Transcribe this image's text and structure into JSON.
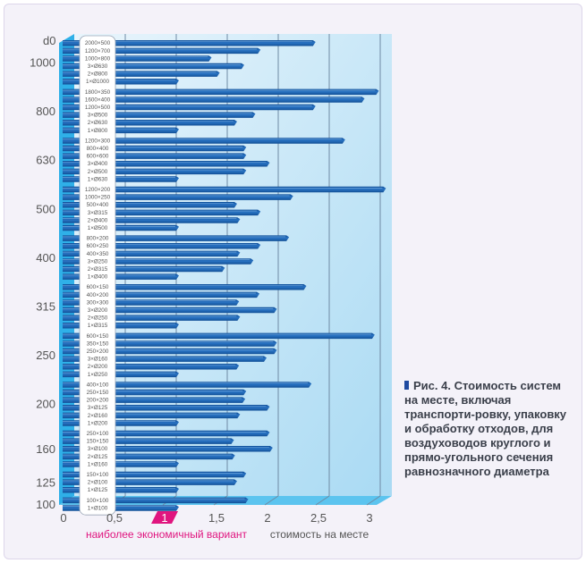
{
  "chart_data": {
    "type": "bar",
    "orientation": "horizontal",
    "y_axis_header": "d0",
    "xlabel": "стоимость на месте",
    "x_ticks": [
      "0",
      "0,5",
      "1",
      "1,5",
      "2",
      "2,5",
      "3"
    ],
    "xlim": [
      0,
      3
    ],
    "highlight_tick": "1",
    "highlight_label": "наиболее экономичный вариант",
    "groups": [
      {
        "d0": "1000",
        "bars": [
          {
            "label": "2000×500",
            "value": 2.34
          },
          {
            "label": "1200×700",
            "value": 1.8
          },
          {
            "label": "1000×800",
            "value": 1.32
          },
          {
            "label": "3×Ø630",
            "value": 1.64
          },
          {
            "label": "2×Ø800",
            "value": 1.4
          },
          {
            "label": "1×Ø1000",
            "value": 1.0
          }
        ]
      },
      {
        "d0": "800",
        "bars": [
          {
            "label": "1800×350",
            "value": 2.96
          },
          {
            "label": "1600×400",
            "value": 2.82
          },
          {
            "label": "1200×500",
            "value": 2.34
          },
          {
            "label": "3×Ø500",
            "value": 1.75
          },
          {
            "label": "2×Ø630",
            "value": 1.57
          },
          {
            "label": "1×Ø800",
            "value": 1.0
          }
        ]
      },
      {
        "d0": "630",
        "bars": [
          {
            "label": "1200×300",
            "value": 2.63
          },
          {
            "label": "800×400",
            "value": 1.66
          },
          {
            "label": "600×600",
            "value": 1.66
          },
          {
            "label": "3×Ø400",
            "value": 1.89
          },
          {
            "label": "2×Ø500",
            "value": 1.66
          },
          {
            "label": "1×Ø630",
            "value": 1.0
          }
        ]
      },
      {
        "d0": "500",
        "bars": [
          {
            "label": "1200×200",
            "value": 3.03
          },
          {
            "label": "1000×250",
            "value": 2.12
          },
          {
            "label": "500×400",
            "value": 1.57
          },
          {
            "label": "3×Ø315",
            "value": 1.8
          },
          {
            "label": "2×Ø400",
            "value": 1.6
          },
          {
            "label": "1×Ø500",
            "value": 1.0
          }
        ]
      },
      {
        "d0": "400",
        "bars": [
          {
            "label": "800×200",
            "value": 2.08
          },
          {
            "label": "600×250",
            "value": 1.8
          },
          {
            "label": "400×350",
            "value": 1.6
          },
          {
            "label": "3×Ø250",
            "value": 1.73
          },
          {
            "label": "2×Ø315",
            "value": 1.45
          },
          {
            "label": "1×Ø400",
            "value": 1.0
          }
        ]
      },
      {
        "d0": "315",
        "bars": [
          {
            "label": "600×150",
            "value": 2.25
          },
          {
            "label": "400×200",
            "value": 1.79
          },
          {
            "label": "300×300",
            "value": 1.59
          },
          {
            "label": "3×Ø200",
            "value": 1.96
          },
          {
            "label": "2×Ø250",
            "value": 1.6
          },
          {
            "label": "1×Ø315",
            "value": 1.0
          }
        ]
      },
      {
        "d0": "250",
        "bars": [
          {
            "label": "600×150",
            "value": 2.92
          },
          {
            "label": "350×150",
            "value": 1.96
          },
          {
            "label": "250×200",
            "value": 1.96
          },
          {
            "label": "3×Ø160",
            "value": 1.86
          },
          {
            "label": "2×Ø200",
            "value": 1.59
          },
          {
            "label": "1×Ø250",
            "value": 1.0
          }
        ]
      },
      {
        "d0": "200",
        "bars": [
          {
            "label": "400×100",
            "value": 2.3
          },
          {
            "label": "250×150",
            "value": 1.66
          },
          {
            "label": "200×200",
            "value": 1.65
          },
          {
            "label": "3×Ø125",
            "value": 1.89
          },
          {
            "label": "2×Ø160",
            "value": 1.6
          },
          {
            "label": "1×Ø200",
            "value": 1.0
          }
        ]
      },
      {
        "d0": "160",
        "bars": [
          {
            "label": "250×100",
            "value": 1.89
          },
          {
            "label": "150×150",
            "value": 1.54
          },
          {
            "label": "3×Ø100",
            "value": 1.92
          },
          {
            "label": "2×Ø125",
            "value": 1.55
          },
          {
            "label": "1×Ø160",
            "value": 1.0
          }
        ]
      },
      {
        "d0": "125",
        "bars": [
          {
            "label": "150×100",
            "value": 1.66
          },
          {
            "label": "2×Ø100",
            "value": 1.57
          },
          {
            "label": "1×Ø125",
            "value": 1.0
          }
        ]
      },
      {
        "d0": "100",
        "bars": [
          {
            "label": "100×100",
            "value": 1.68
          },
          {
            "label": "1×Ø100",
            "value": 1.0
          }
        ]
      }
    ]
  },
  "caption": {
    "figure": "Рис. 4.",
    "text": "Стоимость систем на месте, включая транспорти-ровку, упаковку и обработку отходов, для воздуховодов круглого и прямо-угольного сечения равнозначного диаметра"
  },
  "colors": {
    "bar": "#1b5aa6",
    "bar_light": "#3d86d0",
    "accent": "#e0157f",
    "panel": "#bfe3f5"
  }
}
